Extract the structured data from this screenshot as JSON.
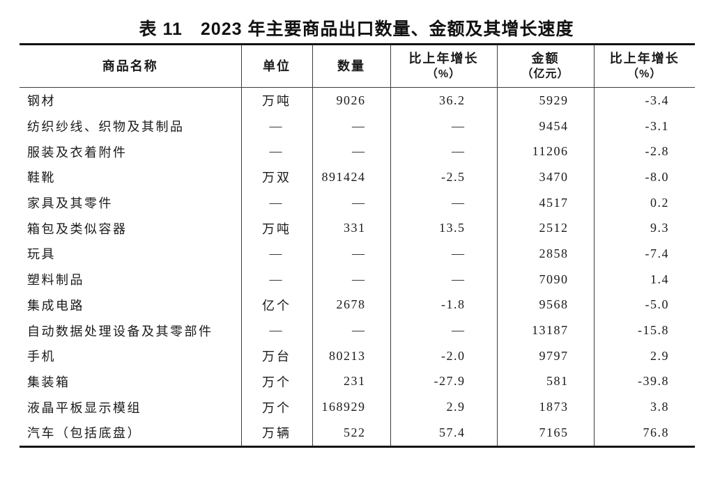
{
  "page": {
    "background": "#ffffff",
    "text_color": "#1a1a1a",
    "border_color": "#111111"
  },
  "title": {
    "table_number": "表 11",
    "text": "2023 年主要商品出口数量、金额及其增长速度"
  },
  "table": {
    "columns": [
      {
        "label": "商品名称",
        "sub": ""
      },
      {
        "label": "单位",
        "sub": ""
      },
      {
        "label": "数量",
        "sub": ""
      },
      {
        "label": "比上年增长",
        "sub": "（%）"
      },
      {
        "label": "金额",
        "sub": "（亿元）"
      },
      {
        "label": "比上年增长",
        "sub": "（%）"
      }
    ],
    "empty_marker": "—",
    "rows": [
      [
        "钢材",
        "万吨",
        "9026",
        "36.2",
        "5929",
        "-3.4"
      ],
      [
        "纺织纱线、织物及其制品",
        "—",
        "—",
        "—",
        "9454",
        "-3.1"
      ],
      [
        "服装及衣着附件",
        "—",
        "—",
        "—",
        "11206",
        "-2.8"
      ],
      [
        "鞋靴",
        "万双",
        "891424",
        "-2.5",
        "3470",
        "-8.0"
      ],
      [
        "家具及其零件",
        "—",
        "—",
        "—",
        "4517",
        "0.2"
      ],
      [
        "箱包及类似容器",
        "万吨",
        "331",
        "13.5",
        "2512",
        "9.3"
      ],
      [
        "玩具",
        "—",
        "—",
        "—",
        "2858",
        "-7.4"
      ],
      [
        "塑料制品",
        "—",
        "—",
        "—",
        "7090",
        "1.4"
      ],
      [
        "集成电路",
        "亿个",
        "2678",
        "-1.8",
        "9568",
        "-5.0"
      ],
      [
        "自动数据处理设备及其零部件",
        "—",
        "—",
        "—",
        "13187",
        "-15.8"
      ],
      [
        "手机",
        "万台",
        "80213",
        "-2.0",
        "9797",
        "2.9"
      ],
      [
        "集装箱",
        "万个",
        "231",
        "-27.9",
        "581",
        "-39.8"
      ],
      [
        "液晶平板显示模组",
        "万个",
        "168929",
        "2.9",
        "1873",
        "3.8"
      ],
      [
        "汽车（包括底盘）",
        "万辆",
        "522",
        "57.4",
        "7165",
        "76.8"
      ]
    ]
  }
}
